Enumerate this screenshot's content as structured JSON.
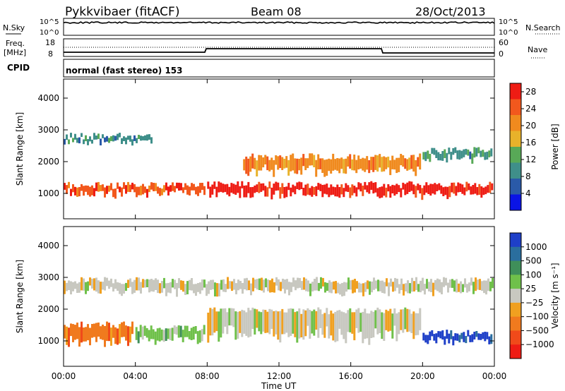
{
  "header": {
    "title": "Pykkvibaer (fitACF)",
    "beam": "Beam 08",
    "date": "28/Oct/2013"
  },
  "noise_panel": {
    "left_label": "N.Sky",
    "right_label": "N.Search",
    "left_ticks": [
      "10^5",
      "10^0"
    ],
    "right_ticks": [
      "10^5",
      "10^0"
    ]
  },
  "freq_panel": {
    "left_label_1": "Freq.",
    "left_label_2": "[MHz]",
    "right_label": "Nave",
    "left_ticks": [
      "18",
      "8"
    ],
    "right_ticks": [
      "60",
      "0"
    ]
  },
  "cpid": {
    "label": "CPID",
    "text": "normal (fast stereo) 153"
  },
  "colors": {
    "power_scale": [
      "#0a14e6",
      "#2a5aa8",
      "#3f8f8a",
      "#58a957",
      "#e8b22a",
      "#f08a1e",
      "#f2581d",
      "#ee1c14"
    ],
    "velocity_scale": [
      "#1e3fc8",
      "#2a6e9e",
      "#3f8f5a",
      "#6fc04a",
      "#c8c8c0",
      "#f0a020",
      "#f07a1e",
      "#f04a1a",
      "#ee1c14"
    ]
  },
  "chart_data": [
    {
      "type": "heatmap",
      "title": "",
      "ylabel": "Slant Range [km]",
      "xlabel": "",
      "x_ticks": [
        "00:00",
        "04:00",
        "08:00",
        "12:00",
        "16:00",
        "20:00",
        "00:00"
      ],
      "y_ticks": [
        "1000",
        "2000",
        "3000",
        "4000"
      ],
      "ylim": [
        200,
        4600
      ],
      "xlim_hours": [
        0,
        24
      ],
      "colorbar": {
        "label": "Power [dB]",
        "ticks": [
          "4",
          "8",
          "12",
          "16",
          "20",
          "24",
          "28"
        ],
        "range": [
          0,
          30
        ]
      },
      "bands": [
        {
          "h_start": 0,
          "h_end": 8,
          "center_km": 1100,
          "width_km": 300,
          "value": 24
        },
        {
          "h_start": 0,
          "h_end": 5,
          "center_km": 2700,
          "width_km": 200,
          "value": 8
        },
        {
          "h_start": 8,
          "h_end": 24,
          "center_km": 1100,
          "width_km": 350,
          "value": 28
        },
        {
          "h_start": 10,
          "h_end": 20,
          "center_km": 1900,
          "width_km": 500,
          "value": 22
        },
        {
          "h_start": 20,
          "h_end": 24,
          "center_km": 2200,
          "width_km": 300,
          "value": 10
        }
      ]
    },
    {
      "type": "heatmap",
      "title": "",
      "ylabel": "Slant Range [km]",
      "xlabel": "Time UT",
      "x_ticks": [
        "00:00",
        "04:00",
        "08:00",
        "12:00",
        "16:00",
        "20:00",
        "00:00"
      ],
      "y_ticks": [
        "1000",
        "2000",
        "3000",
        "4000"
      ],
      "ylim": [
        200,
        4600
      ],
      "xlim_hours": [
        0,
        24
      ],
      "colorbar": {
        "label": "Velocity",
        "label_unit": "[m s⁻¹]",
        "ticks": [
          "1000",
          "500",
          "100",
          "25",
          "−25",
          "−100",
          "−500",
          "−1000"
        ]
      },
      "bands": [
        {
          "h_start": 0,
          "h_end": 4,
          "center_km": 1200,
          "width_km": 600,
          "value": -200
        },
        {
          "h_start": 4,
          "h_end": 8,
          "center_km": 1200,
          "width_km": 400,
          "value": 50
        },
        {
          "h_start": 8,
          "h_end": 20,
          "center_km": 1500,
          "width_km": 900,
          "value": 0
        },
        {
          "h_start": 20,
          "h_end": 24,
          "center_km": 1100,
          "width_km": 300,
          "value": 800
        },
        {
          "h_start": 0,
          "h_end": 24,
          "center_km": 2700,
          "width_km": 400,
          "value": 0
        }
      ]
    }
  ]
}
